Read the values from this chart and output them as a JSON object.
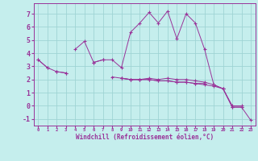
{
  "bg_color": "#c5eeed",
  "grid_color": "#9fd4d4",
  "line_color": "#993399",
  "xlabel": "Windchill (Refroidissement éolien,°C)",
  "xlim": [
    -0.5,
    23.5
  ],
  "ylim": [
    -1.5,
    7.8
  ],
  "yticks": [
    -1,
    0,
    1,
    2,
    3,
    4,
    5,
    6,
    7
  ],
  "xticks": [
    0,
    1,
    2,
    3,
    4,
    5,
    6,
    7,
    8,
    9,
    10,
    11,
    12,
    13,
    14,
    15,
    16,
    17,
    18,
    19,
    20,
    21,
    22,
    23
  ],
  "series": [
    [
      3.5,
      2.9,
      null,
      null,
      4.3,
      4.9,
      3.3,
      3.5,
      3.5,
      2.9,
      5.6,
      6.3,
      7.1,
      6.3,
      7.2,
      5.1,
      7.0,
      6.3,
      4.3,
      1.6,
      1.3,
      -0.1,
      -0.1,
      -1.1
    ],
    [
      3.5,
      2.9,
      2.6,
      2.5,
      null,
      null,
      3.3,
      3.5,
      null,
      2.1,
      2.0,
      2.0,
      2.1,
      2.0,
      2.1,
      2.0,
      2.0,
      1.9,
      1.8,
      1.6,
      1.3,
      -0.1,
      -0.1,
      null
    ],
    [
      null,
      null,
      2.6,
      2.5,
      null,
      null,
      null,
      null,
      2.2,
      2.1,
      2.0,
      2.0,
      2.0,
      1.9,
      1.9,
      1.8,
      1.8,
      1.7,
      1.7,
      null,
      null,
      null,
      null,
      null
    ],
    [
      null,
      null,
      null,
      null,
      null,
      null,
      null,
      null,
      null,
      2.1,
      2.0,
      2.0,
      2.0,
      1.9,
      1.9,
      1.8,
      1.8,
      1.7,
      1.6,
      1.5,
      1.3,
      0.0,
      0.0,
      null
    ]
  ]
}
